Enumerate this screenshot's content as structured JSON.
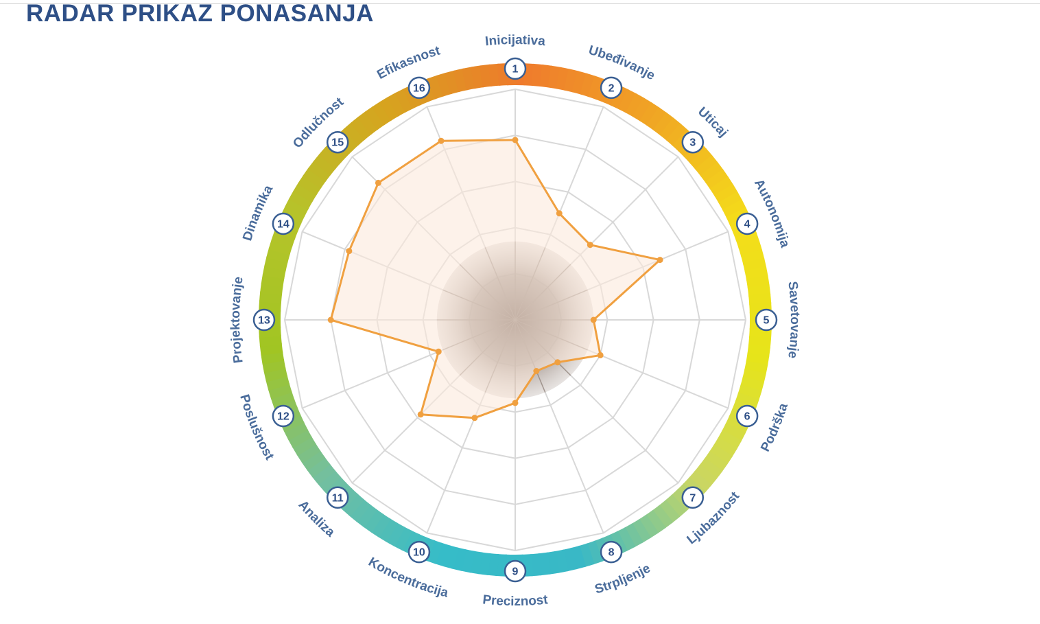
{
  "page": {
    "title": "RADAR PRIKAZ PONASANJA"
  },
  "colors": {
    "title": "#2e4f86",
    "series_line": "#f0a040",
    "series_fill": "#fbe9dc",
    "grid": "#d8d8d8",
    "axis_label": "#4a6c9b",
    "marker_text": "#2e4f86",
    "ring_stops": [
      "#ef7a2d",
      "#f0a524",
      "#f4dd1a",
      "#e6e41a",
      "#c9d664",
      "#39b8c6",
      "#36bcc8",
      "#73bfa0",
      "#a1c523",
      "#b6c32a",
      "#d6a41f",
      "#ee7a2b"
    ]
  },
  "chart_data": {
    "type": "radar",
    "title": "",
    "rlim": [
      0,
      5
    ],
    "rings": 5,
    "grid": true,
    "center_disc_radius": 1.7,
    "axes": [
      {
        "number": "1",
        "label": "Inicijativa"
      },
      {
        "number": "2",
        "label": "Ubeđivanje"
      },
      {
        "number": "3",
        "label": "Uticaj"
      },
      {
        "number": "4",
        "label": "Autonomija"
      },
      {
        "number": "5",
        "label": "Savetovanje"
      },
      {
        "number": "6",
        "label": "Podrška"
      },
      {
        "number": "7",
        "label": "Ljubaznost"
      },
      {
        "number": "8",
        "label": "Strpljenje"
      },
      {
        "number": "9",
        "label": "Preciznost"
      },
      {
        "number": "10",
        "label": "Koncentracija"
      },
      {
        "number": "11",
        "label": "Analiza"
      },
      {
        "number": "12",
        "label": "Poslušnost"
      },
      {
        "number": "13",
        "label": "Projektovanje"
      },
      {
        "number": "14",
        "label": "Dinamika"
      },
      {
        "number": "15",
        "label": "Odlučnost"
      },
      {
        "number": "16",
        "label": "Efikasnost"
      }
    ],
    "series": [
      {
        "values": [
          3.9,
          2.5,
          2.3,
          3.4,
          1.7,
          2.0,
          1.3,
          1.2,
          1.8,
          2.3,
          2.9,
          1.8,
          4.0,
          3.9,
          4.2,
          4.2
        ]
      }
    ]
  }
}
